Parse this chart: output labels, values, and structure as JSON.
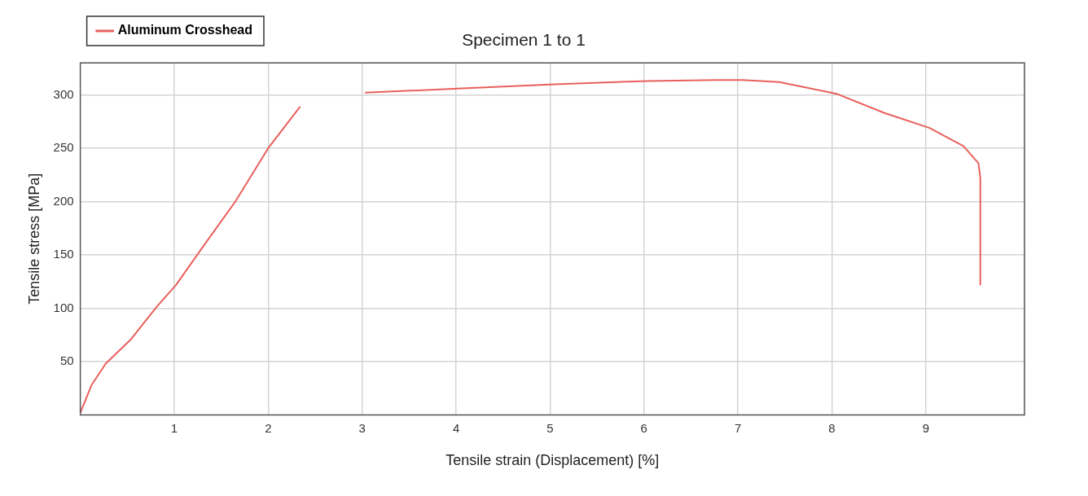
{
  "chart_data": {
    "type": "line",
    "title": "Specimen 1 to 1",
    "xlabel": "Tensile strain (Displacement) [%]",
    "ylabel": "Tensile stress [MPa]",
    "xlim": [
      0,
      10.05
    ],
    "xticks": [
      1,
      2,
      3,
      4,
      5,
      6,
      7,
      8,
      9
    ],
    "ylim": [
      0,
      330
    ],
    "yticks": [
      50,
      100,
      150,
      200,
      250,
      300
    ],
    "grid": true,
    "legend": "top left",
    "marker": "none",
    "line_style": "solid",
    "series": [
      {
        "name": "Aluminum Crosshead",
        "color": "#e8605c",
        "x": [
          0,
          0.12,
          0.27,
          0.54,
          0.81,
          1.02,
          1.26,
          1.65,
          2.0,
          2.34,
          2.6,
          3.03,
          4.02,
          5.05,
          6.04,
          6.78,
          7.05,
          7.44,
          8.05,
          8.56,
          9.04,
          9.4,
          9.56,
          9.58,
          9.58
        ],
        "values": [
          2,
          28,
          48,
          71,
          101,
          122,
          152,
          200,
          250,
          289,
          null,
          302,
          306,
          310,
          313,
          314,
          314,
          312,
          301,
          283,
          269,
          252,
          236,
          222,
          122
        ]
      }
    ]
  }
}
